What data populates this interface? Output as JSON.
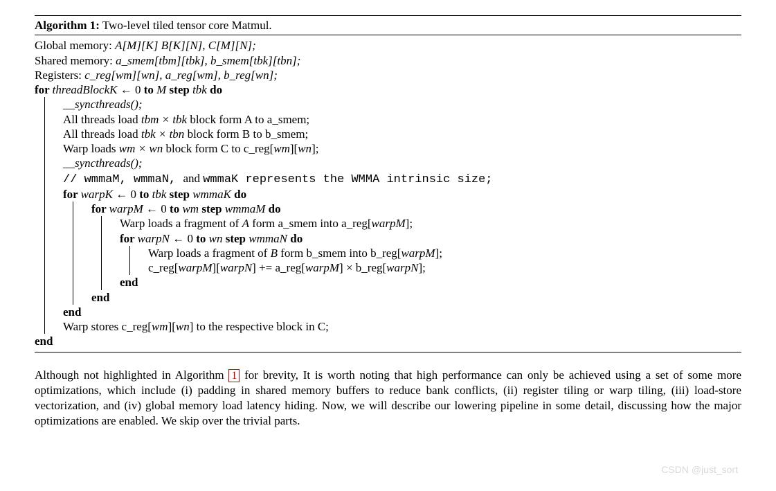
{
  "algorithm": {
    "number": "Algorithm 1:",
    "title": "Two-level tiled tensor core Matmul.",
    "decl_global_label": "Global memory: ",
    "decl_global": "A[M][K] B[K][N], C[M][N];",
    "decl_shared_label": "Shared memory: ",
    "decl_shared": "a_smem[tbm][tbk], b_smem[tbk][tbn];",
    "decl_reg_label": "Registers: ",
    "decl_reg": "c_reg[wm][wn], a_reg[wm], b_reg[wn];",
    "for1_kw": "for ",
    "for1_var": "threadBlockK",
    "for1_arrow": " ← 0 ",
    "for1_to": "to ",
    "for1_upper": "M ",
    "for1_step": "step ",
    "for1_stepv": "tbk ",
    "for1_do": "do",
    "sync": "__syncthreads();",
    "load_a_1": "All threads load ",
    "load_a_dims": "tbm × tbk",
    "load_a_2": " block form A to a_smem;",
    "load_b_1": "All threads load ",
    "load_b_dims": "tbk × tbn",
    "load_b_2": " block form B to b_smem;",
    "warp_c_1": "Warp loads ",
    "warp_c_dims": "wm × wn",
    "warp_c_2": " block form C to c_reg[",
    "warp_c_3": "wm",
    "warp_c_4": "][",
    "warp_c_5": "wn",
    "warp_c_6": "];",
    "comment_slash": "// ",
    "comment_tt": "wmmaM, wmmaN, ",
    "comment_and": "and ",
    "comment_tt2": "wmmaK represents the WMMA intrinsic size;",
    "for2_var": "warpK",
    "for2_upper": "tbk ",
    "for2_stepv": "wmmaK ",
    "for3_var": "warpM",
    "for3_upper": "wm ",
    "for3_stepv": "wmmaM ",
    "frag_a_1": "Warp loads a fragment of ",
    "frag_a_mat": "A",
    "frag_a_2": " form a_smem into a_reg[",
    "frag_a_3": "warpM",
    "frag_a_4": "];",
    "for4_var": "warpN",
    "for4_upper": "wn ",
    "for4_stepv": "wmmaN ",
    "frag_b_1": "Warp loads a fragment of ",
    "frag_b_mat": "B",
    "frag_b_2": " form b_smem into b_reg[",
    "frag_b_3": "warpM",
    "frag_b_4": "];",
    "mac_1": "c_reg[",
    "mac_2": "warpM",
    "mac_3": "][",
    "mac_4": "warpN",
    "mac_5": "] += a_reg[",
    "mac_6": "warpM",
    "mac_7": "] × b_reg[",
    "mac_8": "warpN",
    "mac_9": "];",
    "end": "end",
    "store_1": "Warp stores c_reg[",
    "store_2": "wm",
    "store_3": "][",
    "store_4": "wn",
    "store_5": "] to the respective block in C;"
  },
  "paragraph": {
    "t1": "Although not highlighted in Algorithm ",
    "ref": "1",
    "t2": " for brevity, It is worth noting that high performance can only be achieved using a set of some more optimizations, which include (i) padding in shared memory buffers to reduce bank conflicts, (ii) register tiling or warp tiling, (iii) load-store vectorization, and (iv) global memory load latency hiding. Now, we will describe our lowering pipeline in some detail, discussing how the major optimizations are enabled. We skip over the trivial parts."
  },
  "watermark": "CSDN @just_sort"
}
